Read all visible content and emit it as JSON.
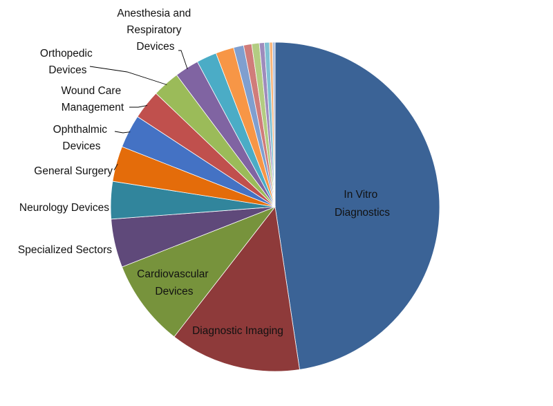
{
  "chart_data": {
    "type": "pie",
    "title": "",
    "legend": "none",
    "slices": [
      {
        "label": "In Vitro Diagnostics",
        "value": 48.0,
        "color": "#3B6396"
      },
      {
        "label": "Diagnostic Imaging",
        "value": 13.0,
        "color": "#8E3A3A"
      },
      {
        "label": "Cardiovascular Devices",
        "value": 8.6,
        "color": "#77933C"
      },
      {
        "label": "Specialized Sectors",
        "value": 4.8,
        "color": "#5F497A"
      },
      {
        "label": "Neurology Devices",
        "value": 3.7,
        "color": "#31859C"
      },
      {
        "label": "General Surgery",
        "value": 3.5,
        "color": "#E46C0A"
      },
      {
        "label": "Ophthalmic Devices",
        "value": 3.3,
        "color": "#4472C4"
      },
      {
        "label": "Wound Care Management",
        "value": 2.9,
        "color": "#C0504D"
      },
      {
        "label": "Orthopedic Devices",
        "value": 2.7,
        "color": "#9BBB59"
      },
      {
        "label": "Anesthesia and Respiratory Devices",
        "value": 2.4,
        "color": "#8064A2"
      },
      {
        "label": "",
        "value": 2.0,
        "color": "#4BACC6"
      },
      {
        "label": "",
        "value": 1.8,
        "color": "#F79646"
      },
      {
        "label": "",
        "value": 1.0,
        "color": "#7F9FCF"
      },
      {
        "label": "",
        "value": 0.8,
        "color": "#D07C7A"
      },
      {
        "label": "",
        "value": 0.75,
        "color": "#B3CC82"
      },
      {
        "label": "",
        "value": 0.5,
        "color": "#9E8BBC"
      },
      {
        "label": "",
        "value": 0.5,
        "color": "#7FC0D3"
      },
      {
        "label": "",
        "value": 0.3,
        "color": "#F9B478"
      },
      {
        "label": "",
        "value": 0.25,
        "color": "#A8BDE0"
      }
    ]
  }
}
